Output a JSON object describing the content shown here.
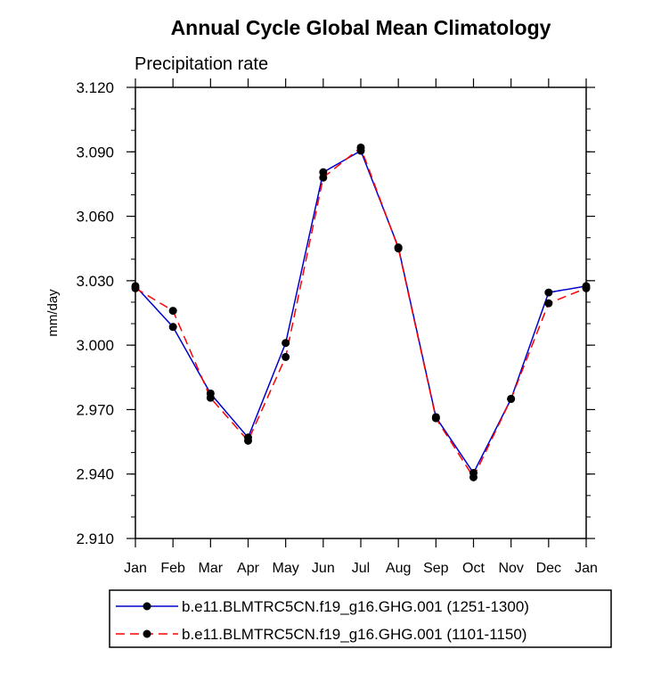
{
  "chart_data": {
    "type": "line",
    "title": "Annual Cycle Global Mean Climatology",
    "subtitle": "Precipitation rate",
    "xlabel": "",
    "ylabel": "mm/day",
    "categories": [
      "Jan",
      "Feb",
      "Mar",
      "Apr",
      "May",
      "Jun",
      "Jul",
      "Aug",
      "Sep",
      "Oct",
      "Nov",
      "Dec",
      "Jan"
    ],
    "ylim": [
      2.91,
      3.12
    ],
    "yticks": [
      "2.910",
      "2.940",
      "2.970",
      "3.000",
      "3.030",
      "3.060",
      "3.090",
      "3.120"
    ],
    "ytick_values": [
      2.91,
      2.94,
      2.97,
      3.0,
      3.03,
      3.06,
      3.09,
      3.12
    ],
    "grid": false,
    "legend_position": "bottom",
    "series": [
      {
        "name": "b.e11.BLMTRC5CN.f19_g16.GHG.001 (1251-1300)",
        "color": "#0000cc",
        "dash": "solid",
        "values": [
          3.0275,
          3.0085,
          2.9775,
          2.957,
          3.001,
          3.0805,
          3.0905,
          3.0455,
          2.9665,
          2.9405,
          2.975,
          3.0245,
          3.0275
        ]
      },
      {
        "name": "b.e11.BLMTRC5CN.f19_g16.GHG.001 (1101-1150)",
        "color": "#ff0000",
        "dash": "dashed",
        "values": [
          3.0265,
          3.016,
          2.9755,
          2.9555,
          2.9945,
          3.078,
          3.092,
          3.045,
          2.966,
          2.9385,
          2.975,
          3.0195,
          3.0265
        ]
      }
    ]
  }
}
